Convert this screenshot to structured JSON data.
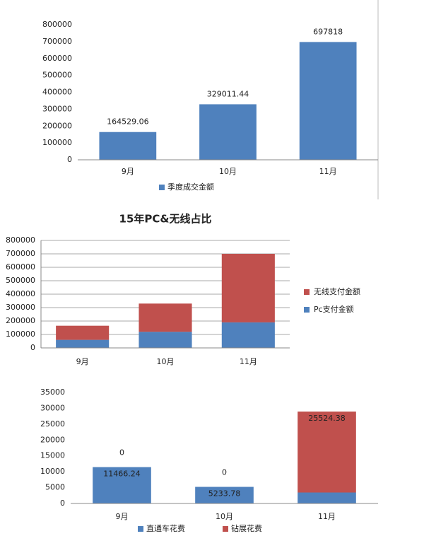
{
  "chart_data": [
    {
      "type": "bar",
      "categories": [
        "9月",
        "10月",
        "11月"
      ],
      "series": [
        {
          "name": "季度成交金额",
          "color": "#4f81bd",
          "values": [
            164529.06,
            329011.44,
            697818
          ]
        }
      ],
      "ylim": [
        0,
        800000
      ],
      "yticks": [
        0,
        100000,
        200000,
        300000,
        400000,
        500000,
        600000,
        700000,
        800000
      ],
      "grid": false,
      "data_labels": true,
      "legend": "bottom"
    },
    {
      "type": "stacked-bar",
      "title": "15年PC&无线占比",
      "categories": [
        "9月",
        "10月",
        "11月"
      ],
      "series": [
        {
          "name": "Pc支付金额",
          "color": "#4f81bd",
          "values": [
            60000,
            120000,
            190000
          ]
        },
        {
          "name": "无线支付金额",
          "color": "#c0504d",
          "values": [
            105000,
            210000,
            510000
          ]
        }
      ],
      "ylim": [
        0,
        800000
      ],
      "yticks": [
        0,
        100000,
        200000,
        300000,
        400000,
        500000,
        600000,
        700000,
        800000
      ],
      "grid": true,
      "data_labels": false,
      "legend": "right"
    },
    {
      "type": "stacked-bar",
      "categories": [
        "9月",
        "10月",
        "11月"
      ],
      "series": [
        {
          "name": "直通车花费",
          "color": "#4f81bd",
          "values": [
            11466.24,
            5233.78,
            3454
          ]
        },
        {
          "name": "钻展花费",
          "color": "#c0504d",
          "values": [
            0,
            0,
            25524.38
          ]
        }
      ],
      "ylim": [
        0,
        35000
      ],
      "yticks": [
        0,
        5000,
        10000,
        15000,
        20000,
        25000,
        30000,
        35000
      ],
      "grid": false,
      "data_labels": true,
      "legend": "bottom"
    }
  ]
}
